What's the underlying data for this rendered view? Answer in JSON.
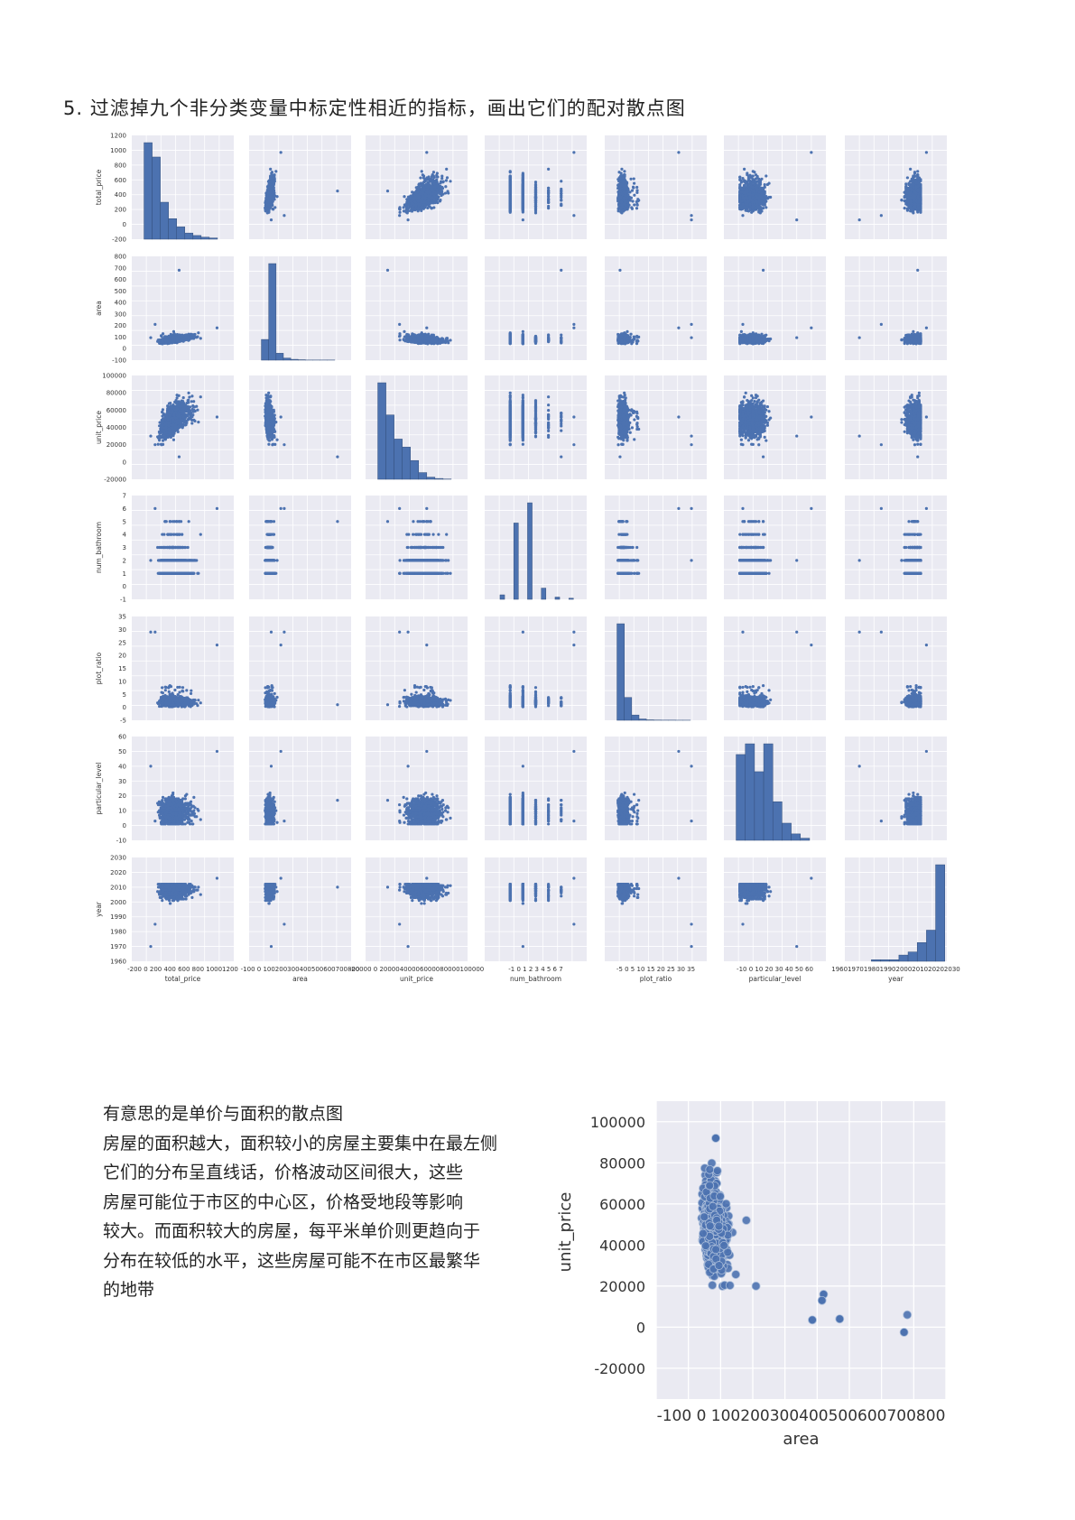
{
  "heading": "5. 过滤掉九个非分类变量中标定性相近的指标，画出它们的配对散点图",
  "description": [
    "有意思的是单价与面积的散点图",
    "房屋的面积越大，面积较小的房屋主要集中在最左侧",
    "它们的分布呈直线话，价格波动区间很大，这些",
    "房屋可能位于市区的中心区，价格受地段等影响",
    "较大。而面积较大的房屋，每平米单价则更趋向于",
    "分布在较低的水平，这些房屋可能不在市区最繁华",
    "的地带"
  ],
  "colors": {
    "point": "#4c72b0",
    "panel_bg": "#eaeaf2",
    "grid": "#ffffff"
  },
  "chart_data": [
    {
      "type": "scatter",
      "subtype": "pairplot",
      "variables": [
        "total_price",
        "area",
        "unit_price",
        "num_bathroom",
        "plot_ratio",
        "particular_level",
        "year"
      ],
      "diagonal": "histogram",
      "axes": {
        "total_price": {
          "range": [
            -200,
            1200
          ],
          "ticks": [
            "-200",
            "0",
            "200",
            "400",
            "600",
            "800",
            "1000",
            "1200"
          ],
          "xticks_label": "-200 0 200 400 600 800 10001200"
        },
        "area": {
          "range": [
            -100,
            800
          ],
          "ticks": [
            "-100",
            "0",
            "100",
            "200",
            "300",
            "400",
            "500",
            "600",
            "700",
            "800"
          ],
          "xticks_label": "-100 0 100200300400500600700800"
        },
        "unit_price": {
          "range": [
            -20000,
            100000
          ],
          "ticks": [
            "-20000",
            "0",
            "20000",
            "40000",
            "60000",
            "80000",
            "100000"
          ],
          "xticks_label": "-20000 0 20000400006000080000100000"
        },
        "num_bathroom": {
          "range": [
            -1,
            7
          ],
          "ticks": [
            "-1",
            "0",
            "1",
            "2",
            "3",
            "4",
            "5",
            "6",
            "7"
          ],
          "xticks_label": "-1 0 1 2 3 4 5 6 7"
        },
        "plot_ratio": {
          "range": [
            -5,
            35
          ],
          "ticks": [
            "-5",
            "0",
            "5",
            "10",
            "15",
            "20",
            "25",
            "30",
            "35"
          ],
          "xticks_label": "-5 0 5 10 15 20 25 30 35"
        },
        "particular_level": {
          "range": [
            -10,
            60
          ],
          "ticks": [
            "-10",
            "0",
            "10",
            "20",
            "30",
            "40",
            "50",
            "60"
          ],
          "xticks_label": "-10 0 10 20 30 40 50 60"
        },
        "year": {
          "range": [
            1960,
            2030
          ],
          "ticks": [
            "1960",
            "1970",
            "1980",
            "1990",
            "2000",
            "2010",
            "2020",
            "2030"
          ],
          "xticks_label": "19601970198019902000201020202030"
        }
      },
      "histograms": {
        "total_price": [
          470,
          400,
          180,
          100,
          60,
          30,
          18,
          10,
          6
        ],
        "area": [
          150,
          700,
          50,
          15,
          6,
          3,
          1,
          1,
          1,
          1
        ],
        "unit_price": [
          36000,
          24000,
          15000,
          12000,
          7000,
          2500,
          800,
          300,
          100
        ],
        "num_bathroom": [
          2,
          0,
          0,
          34,
          0,
          0,
          43,
          0,
          0,
          5,
          0,
          0,
          1,
          0,
          0,
          0.5
        ],
        "plot_ratio": [
          1100,
          260,
          60,
          15,
          5,
          3,
          2,
          2,
          1,
          1
        ],
        "particular_level": [
          40,
          45,
          32,
          45,
          18,
          8,
          3,
          1
        ],
        "year": [
          1,
          1,
          1,
          4,
          6,
          12,
          20,
          62
        ]
      }
    },
    {
      "type": "scatter",
      "xlabel": "area",
      "ylabel": "unit_price",
      "xlim": [
        -100,
        800
      ],
      "ylim": [
        -35000,
        110000
      ],
      "x_tick_text": "-100 0 100200300400500600700800",
      "yticks": [
        -20000,
        0,
        20000,
        40000,
        60000,
        80000,
        100000
      ],
      "ytick_labels": [
        "-20000",
        "0",
        "20000",
        "40000",
        "60000",
        "80000",
        "100000"
      ],
      "notable_points": [
        {
          "x": 670,
          "y": -2500
        },
        {
          "x": 470,
          "y": 4000
        },
        {
          "x": 420,
          "y": 16000
        },
        {
          "x": 415,
          "y": 13000
        },
        {
          "x": 385,
          "y": 3500
        },
        {
          "x": 85,
          "y": 92000
        }
      ]
    }
  ]
}
